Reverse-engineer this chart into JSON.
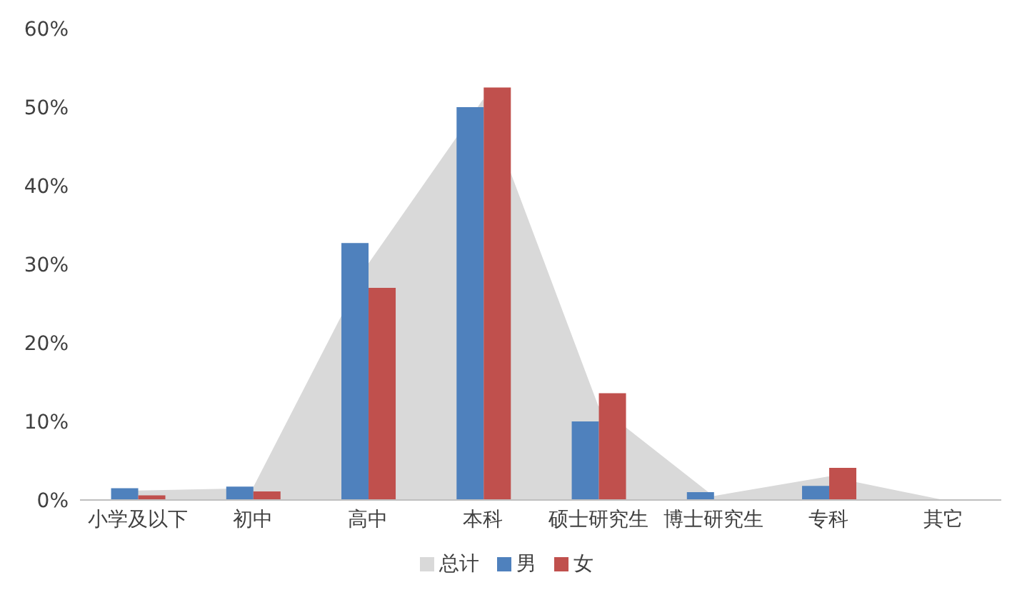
{
  "chart_data": {
    "type": "bar",
    "categories": [
      "小学及以下",
      "初中",
      "高中",
      "本科",
      "硕士研究生",
      "博士研究生",
      "专科",
      "其它"
    ],
    "series": [
      {
        "name": "总计",
        "type": "area",
        "color": "#d9d9d9",
        "values": [
          1.2,
          1.5,
          30,
          51,
          12,
          0.5,
          3,
          0
        ]
      },
      {
        "name": "男",
        "color": "#4f81bd",
        "values": [
          1.5,
          1.7,
          32.7,
          50,
          10,
          1.0,
          1.8,
          0
        ]
      },
      {
        "name": "女",
        "color": "#c0504d",
        "values": [
          0.6,
          1.1,
          27,
          52.5,
          13.6,
          0,
          4.1,
          0
        ]
      }
    ],
    "ylim": [
      0,
      60
    ],
    "yticks": [
      {
        "value": 0,
        "label": "0%"
      },
      {
        "value": 10,
        "label": "10%"
      },
      {
        "value": 20,
        "label": "20%"
      },
      {
        "value": 30,
        "label": "30%"
      },
      {
        "value": 40,
        "label": "40%"
      },
      {
        "value": 50,
        "label": "50%"
      },
      {
        "value": 60,
        "label": "60%"
      }
    ],
    "grid": false,
    "legend": "bottom"
  }
}
